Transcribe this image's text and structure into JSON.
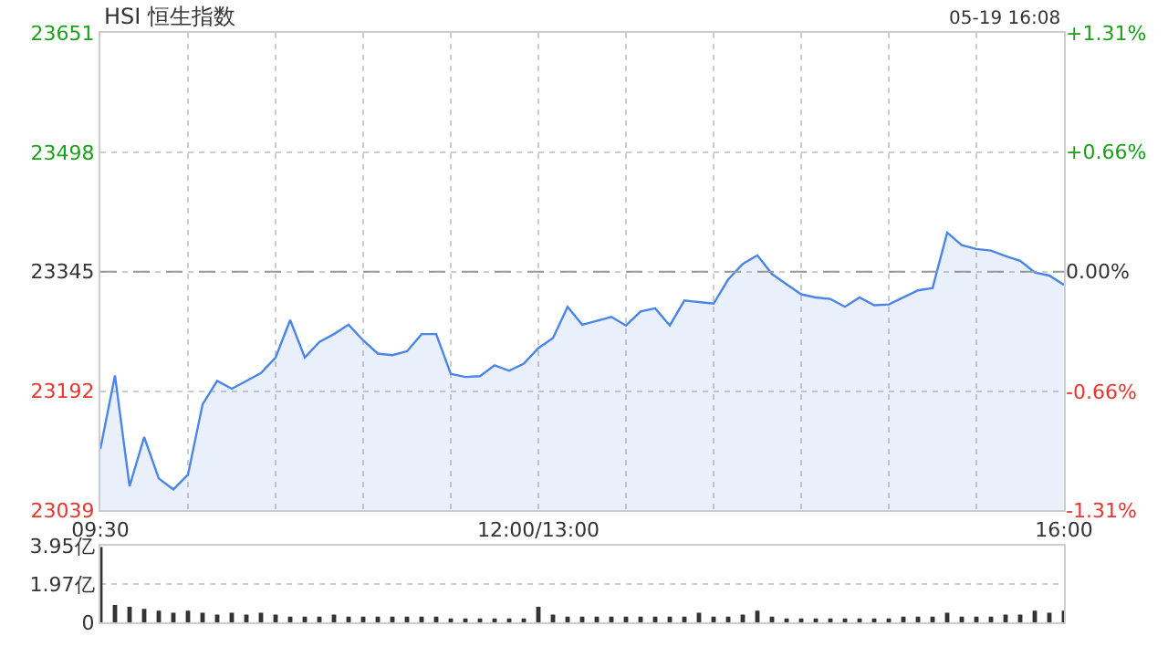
{
  "chart_data": [
    {
      "type": "area",
      "title": "HSI 恒生指数",
      "annotations": [
        "05-19 16:08"
      ],
      "categories": [
        "09:30",
        null,
        null,
        null,
        null,
        null,
        null,
        null,
        null,
        null,
        null,
        null,
        null,
        null,
        null,
        null,
        null,
        null,
        null,
        null,
        null,
        null,
        null,
        null,
        null,
        null,
        null,
        null,
        null,
        null,
        "12:00/13:00",
        null,
        null,
        null,
        null,
        null,
        null,
        null,
        null,
        null,
        null,
        null,
        null,
        null,
        null,
        null,
        null,
        null,
        null,
        null,
        null,
        null,
        null,
        null,
        null,
        null,
        null,
        null,
        null,
        null,
        null,
        null,
        null,
        null,
        null,
        null,
        "16:00"
      ],
      "series": [
        {
          "color": "#4a86e8",
          "values": [
            23118,
            23212,
            23070,
            23133,
            23080,
            23066,
            23085,
            23175,
            23205,
            23195,
            23205,
            23215,
            23235,
            23283,
            23235,
            23255,
            23265,
            23277,
            23257,
            23240,
            23238,
            23243,
            23265,
            23265,
            23214,
            23210,
            23211,
            23225,
            23218,
            23227,
            23247,
            23260,
            23300,
            23277,
            23282,
            23287,
            23276,
            23294,
            23298,
            23276,
            23308,
            23306,
            23304,
            23335,
            23355,
            23366,
            23342,
            23329,
            23316,
            23312,
            23310,
            23300,
            23312,
            23302,
            23303,
            23312,
            23321,
            23324,
            23395,
            23379,
            23374,
            23372,
            23365,
            23359,
            23344,
            23340,
            23328
          ]
        }
      ],
      "ylim": [
        23039,
        23651
      ],
      "yticks": [
        23039,
        23192,
        23345,
        23498,
        23651
      ],
      "y2lim": [
        -1.31,
        1.31
      ],
      "y2ticks": [
        {
          "value": -1.31,
          "label": "-1.31%"
        },
        {
          "value": -0.66,
          "label": "-0.66%"
        },
        {
          "value": 0,
          "label": "0.00%"
        },
        {
          "value": 0.66,
          "label": "+0.66%"
        },
        {
          "value": 1.31,
          "label": "+1.31%"
        }
      ],
      "ref_lines": [
        {
          "axis": "y",
          "value": 23345,
          "color": "#999999",
          "line_style": "dashed"
        }
      ],
      "grid": true
    },
    {
      "type": "bar",
      "color": "#333333",
      "tick_labels": "y",
      "grid": "y",
      "categories": [
        null,
        null,
        null,
        null,
        null,
        null,
        null,
        null,
        null,
        null,
        null,
        null,
        null,
        null,
        null,
        null,
        null,
        null,
        null,
        null,
        null,
        null,
        null,
        null,
        null,
        null,
        null,
        null,
        null,
        null,
        null,
        null,
        null,
        null,
        null,
        null,
        null,
        null,
        null,
        null,
        null,
        null,
        null,
        null,
        null,
        null,
        null,
        null,
        null,
        null,
        null,
        null,
        null,
        null,
        null,
        null,
        null,
        null,
        null,
        null,
        null,
        null,
        null,
        null,
        null,
        null,
        null
      ],
      "values": [
        3.9,
        0.9,
        0.8,
        0.7,
        0.6,
        0.5,
        0.6,
        0.5,
        0.4,
        0.5,
        0.4,
        0.5,
        0.4,
        0.3,
        0.3,
        0.3,
        0.4,
        0.3,
        0.3,
        0.3,
        0.3,
        0.3,
        0.3,
        0.3,
        0.2,
        0.2,
        0.2,
        0.2,
        0.2,
        0.2,
        0.8,
        0.4,
        0.3,
        0.3,
        0.3,
        0.3,
        0.3,
        0.3,
        0.3,
        0.3,
        0.3,
        0.5,
        0.3,
        0.3,
        0.4,
        0.6,
        0.3,
        0.2,
        0.2,
        0.2,
        0.2,
        0.2,
        0.2,
        0.2,
        0.2,
        0.3,
        0.3,
        0.3,
        0.5,
        0.3,
        0.3,
        0.3,
        0.4,
        0.4,
        0.6,
        0.5,
        0.6
      ],
      "ylim": [
        0,
        3.95
      ],
      "yticks": [
        0,
        {
          "value": 1.97,
          "label": "1.97亿"
        },
        {
          "value": 3.95,
          "label": "3.95亿"
        }
      ]
    }
  ]
}
